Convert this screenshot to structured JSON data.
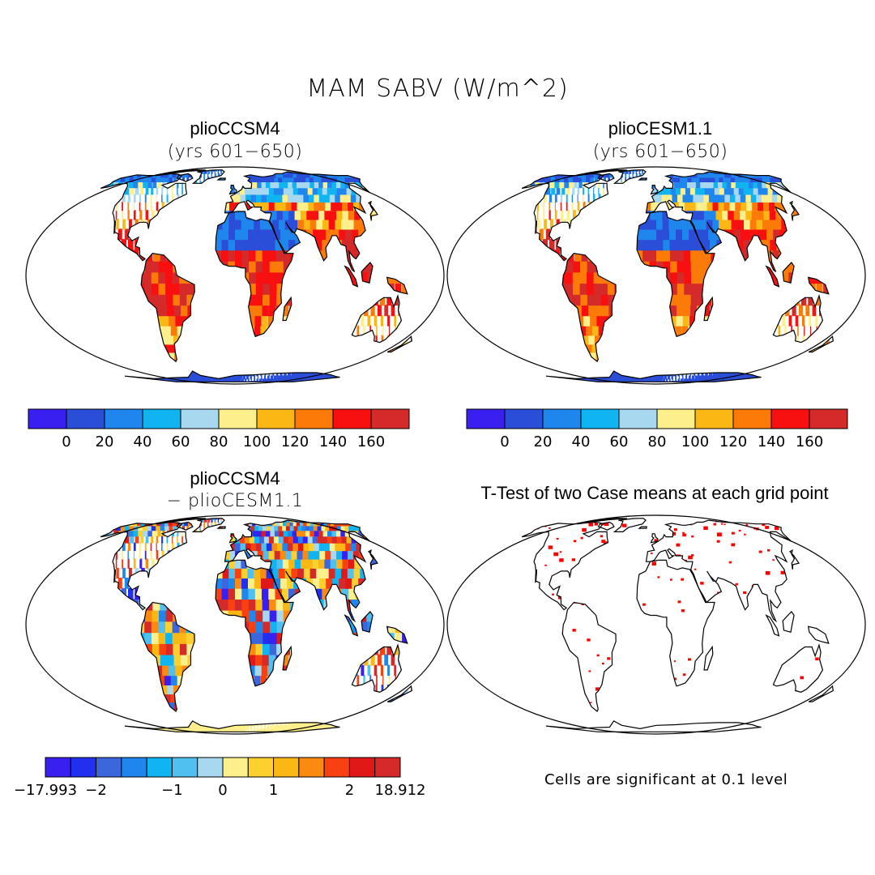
{
  "figure": {
    "main_title": "MAM SABV (W/m^2)",
    "note": "Cells are significant at 0.1 level"
  },
  "panels": [
    {
      "title": "plioCCSM4",
      "subtitle": "(yrs 601−650)"
    },
    {
      "title": "plioCESM1.1",
      "subtitle": "(yrs 601−650)"
    },
    {
      "title": "plioCCSM4",
      "subtitle": "− plioCESM1.1"
    },
    {
      "title": "T-Test of two Case means at each grid point",
      "subtitle": ""
    }
  ],
  "chart_data": [
    {
      "type": "heatmap",
      "title": "plioCCSM4 (yrs 601−650)",
      "colorbar_ticks": [
        "0",
        "20",
        "40",
        "60",
        "80",
        "100",
        "120",
        "140",
        "160"
      ],
      "colorbar_colors": [
        "#3a20f0",
        "#2b4ed8",
        "#1e86ec",
        "#10b4f0",
        "#a8d8f0",
        "#fdf08c",
        "#fbb814",
        "#fb7a08",
        "#f81010",
        "#d42a2a"
      ]
    },
    {
      "type": "heatmap",
      "title": "plioCESM1.1 (yrs 601−650)",
      "colorbar_ticks": [
        "0",
        "20",
        "40",
        "60",
        "80",
        "100",
        "120",
        "140",
        "160"
      ],
      "colorbar_colors": [
        "#3a20f0",
        "#2b4ed8",
        "#1e86ec",
        "#10b4f0",
        "#a8d8f0",
        "#fdf08c",
        "#fbb814",
        "#fb7a08",
        "#f81010",
        "#d42a2a"
      ]
    },
    {
      "type": "heatmap",
      "title": "plioCCSM4 − plioCESM1.1",
      "colorbar_ticks": [
        "−17.993",
        "−2",
        "−1",
        "0",
        "1",
        "2",
        "18.912"
      ],
      "colorbar_colors": [
        "#3a20f0",
        "#2030ee",
        "#3c66dc",
        "#1e86ec",
        "#10b4f0",
        "#50c0f0",
        "#a8d8f0",
        "#fdf08c",
        "#fdd030",
        "#fbb814",
        "#fb8a10",
        "#f84010",
        "#e01818",
        "#d42a2a"
      ]
    },
    {
      "type": "heatmap",
      "title": "T-Test of two Case means at each grid point",
      "significance_color": "#ff0000"
    }
  ]
}
